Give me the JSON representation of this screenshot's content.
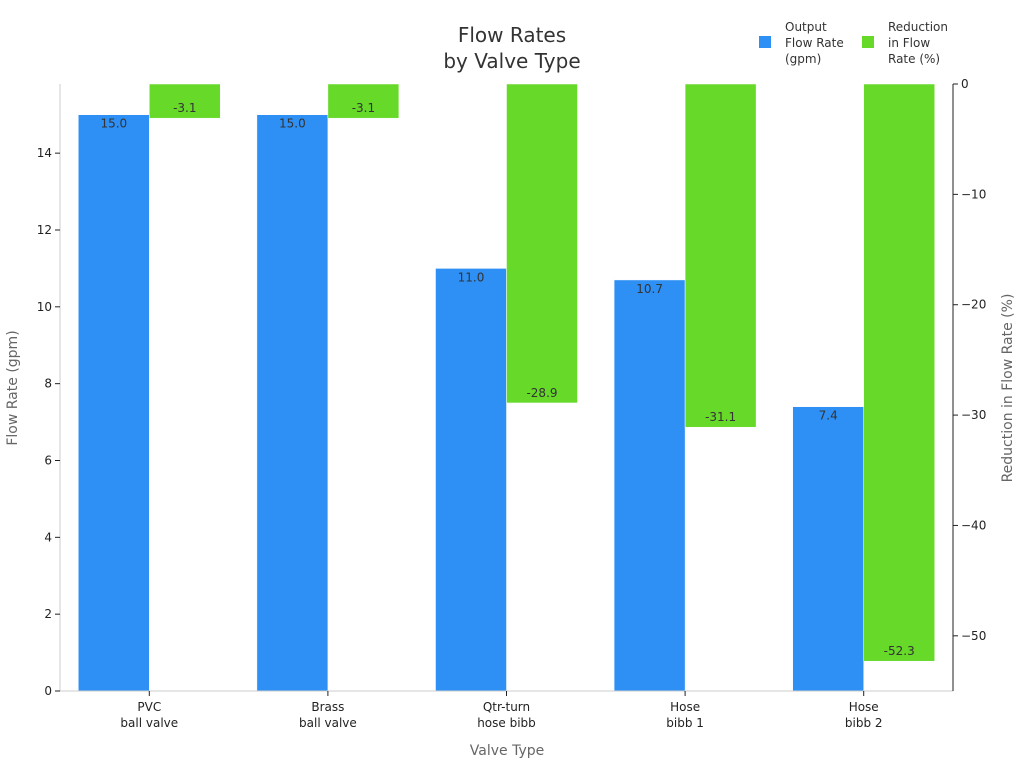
{
  "chart_data": {
    "type": "bar",
    "title": [
      "Flow Rates",
      "by Valve Type"
    ],
    "xlabel": "Valve Type",
    "ylabel": "Flow Rate (gpm)",
    "y2label": "Reduction in Flow Rate (%)",
    "categories": [
      [
        "PVC",
        "ball valve"
      ],
      [
        "Brass",
        "ball valve"
      ],
      [
        "Qtr-turn",
        "hose bibb"
      ],
      [
        "Hose",
        "bibb 1"
      ],
      [
        "Hose",
        "bibb 2"
      ]
    ],
    "ylim": [
      0,
      15.8
    ],
    "y2lim": [
      -55,
      0
    ],
    "yticks": [
      0,
      2,
      4,
      6,
      8,
      10,
      12,
      14
    ],
    "y2ticks": [
      0,
      -10,
      -20,
      -30,
      -40,
      -50
    ],
    "series": [
      {
        "name": [
          "Output",
          "Flow Rate",
          "(gpm)"
        ],
        "axis": "left",
        "color": "#2e90f5",
        "values": [
          15.0,
          15.0,
          11.0,
          10.7,
          7.4
        ],
        "labels": [
          "15.0",
          "15.0",
          "11.0",
          "10.7",
          "7.4"
        ]
      },
      {
        "name": [
          "Reduction",
          "in Flow",
          "Rate (%)"
        ],
        "axis": "right",
        "color": "#66d929",
        "values": [
          -3.1,
          -3.1,
          -28.9,
          -31.1,
          -52.3
        ],
        "labels": [
          "-3.1",
          "-3.1",
          "-28.9",
          "-31.1",
          "-52.3"
        ]
      }
    ],
    "legend": "top-right",
    "grid": false
  }
}
